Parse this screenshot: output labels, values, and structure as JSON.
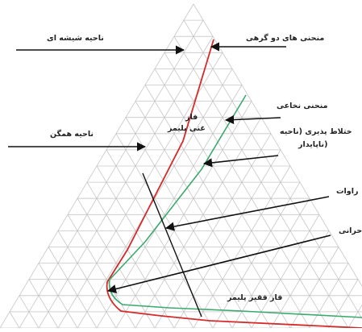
{
  "labels": {
    "glass_region": "ناحیه شیشه ای",
    "binodal_curve": "منحنی های دو گرهی",
    "spinodal_curve": "منحنی نخاعی",
    "polymer_rich_phase_line1": "فاز",
    "polymer_rich_phase_line2": "غنی پلیمر",
    "instability_line1": "ختلاط پذیری (ناحیه",
    "instability_line2": "ناپایدار)",
    "homogeneous_region": "ناحیه همگن",
    "solvent_exchange": "راوات",
    "critical": "حرانی",
    "polymer_lean_phase": "فاز فقیر پلیمر"
  },
  "colors": {
    "grid": "#c6c6c6",
    "binodal": "#d42a2a",
    "spinodal": "#3aaa6e",
    "tie_line": "#111111",
    "arrow": "#111111",
    "text": "#222222"
  }
}
